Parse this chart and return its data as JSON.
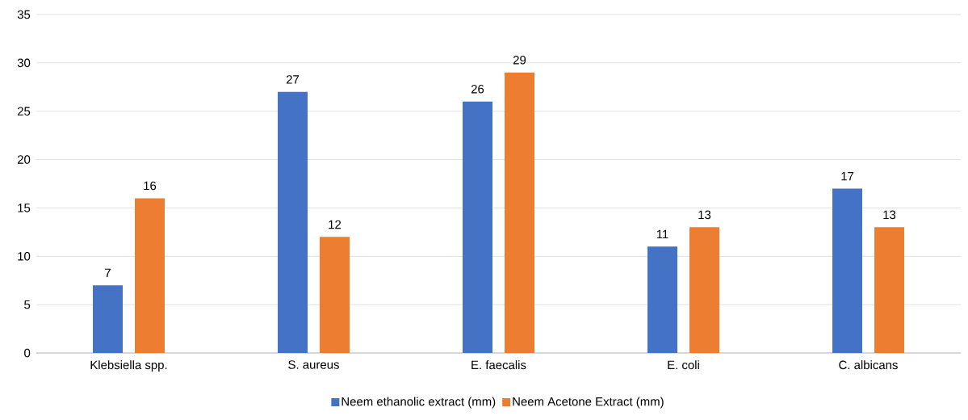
{
  "chart_data": {
    "type": "bar",
    "categories": [
      "Klebsiella spp.",
      "S. aureus",
      "E. faecalis",
      "E. coli",
      "C. albicans"
    ],
    "series": [
      {
        "name": "Neem ethanolic extract (mm)",
        "color": "#4472c4",
        "values": [
          7,
          27,
          26,
          11,
          17
        ]
      },
      {
        "name": "Neem Acetone Extract (mm)",
        "color": "#ed7d31",
        "values": [
          16,
          12,
          29,
          13,
          13
        ]
      }
    ],
    "ylim": [
      0,
      35
    ],
    "yticks": [
      0,
      5,
      10,
      15,
      20,
      25,
      30,
      35
    ],
    "grid": "y",
    "legend": "bottom",
    "data_labels": true
  }
}
